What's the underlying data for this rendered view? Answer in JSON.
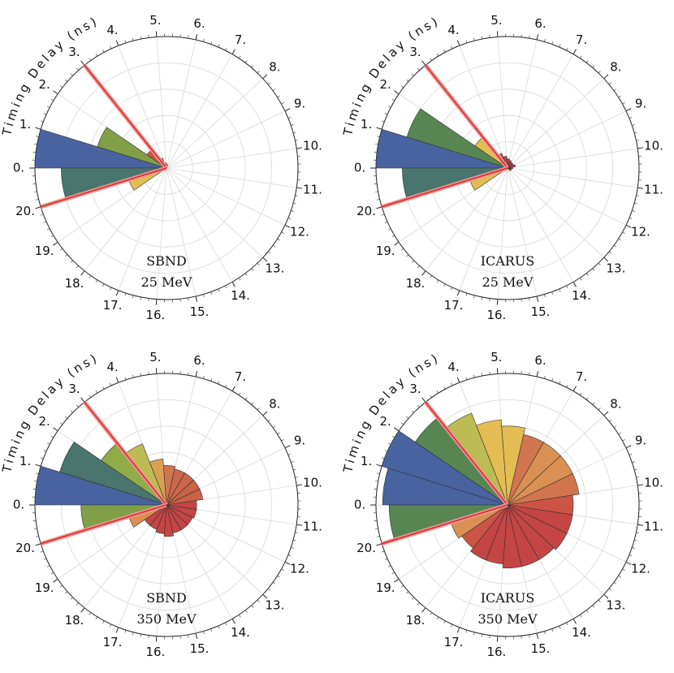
{
  "figure": {
    "curved_axis_label": "Timing Delay (ns)"
  },
  "chart_data": [
    {
      "type": "polar-bar",
      "label_lines": [
        "SBND",
        "25 MeV"
      ],
      "angular_ticks": [
        "0.",
        "1.",
        "2.",
        "3.",
        "4.",
        "5.",
        "6.",
        "7.",
        "8.",
        "9.",
        "10.",
        "11.",
        "12.",
        "13.",
        "14.",
        "15.",
        "16.",
        "17.",
        "18.",
        "19.",
        "20."
      ],
      "angular_range_ns": [
        0,
        21
      ],
      "radial_max": 1.0,
      "radial_grid": [
        0.2,
        0.4,
        0.6,
        0.8,
        1.0
      ],
      "red_lines_ns": [
        3.0,
        20.0
      ],
      "bins": [
        {
          "t": 0.5,
          "r": 1.0,
          "color": "#3f5b9c"
        },
        {
          "t": 1.5,
          "r": 0.55,
          "color": "#7a9a3c"
        },
        {
          "t": 2.5,
          "r": 0.18,
          "color": "#c94b3b"
        },
        {
          "t": 3.5,
          "r": 0.08,
          "color": "#c23b3b"
        },
        {
          "t": 4.5,
          "r": 0.04,
          "color": "#c23b3b"
        },
        {
          "t": 5.5,
          "r": 0.03,
          "color": "#c23b3b"
        },
        {
          "t": 6.5,
          "r": 0.02,
          "color": "#c23b3b"
        },
        {
          "t": 19.5,
          "r": 0.3,
          "color": "#e1b84a"
        },
        {
          "t": 20.5,
          "r": 0.8,
          "color": "#3f6e66"
        }
      ]
    },
    {
      "type": "polar-bar",
      "label_lines": [
        "ICARUS",
        "25 MeV"
      ],
      "angular_ticks": [
        "0.",
        "1.",
        "2.",
        "3.",
        "4.",
        "5.",
        "6.",
        "7.",
        "8.",
        "9.",
        "10.",
        "11.",
        "12.",
        "13.",
        "14.",
        "15.",
        "16.",
        "17.",
        "18.",
        "19.",
        "20."
      ],
      "angular_range_ns": [
        0,
        21
      ],
      "radial_max": 1.0,
      "radial_grid": [
        0.2,
        0.4,
        0.6,
        0.8,
        1.0
      ],
      "red_lines_ns": [
        3.0,
        20.0
      ],
      "bins": [
        {
          "t": 0.5,
          "r": 1.0,
          "color": "#3f5b9c"
        },
        {
          "t": 1.5,
          "r": 0.8,
          "color": "#4f7f4a"
        },
        {
          "t": 2.5,
          "r": 0.3,
          "color": "#e1b84a"
        },
        {
          "t": 3.5,
          "r": 0.12,
          "color": "#c94b3b"
        },
        {
          "t": 4.5,
          "r": 0.09,
          "color": "#c23b3b"
        },
        {
          "t": 5.5,
          "r": 0.07,
          "color": "#c23b3b"
        },
        {
          "t": 6.5,
          "r": 0.06,
          "color": "#c23b3b"
        },
        {
          "t": 7.5,
          "r": 0.05,
          "color": "#c23b3b"
        },
        {
          "t": 8.5,
          "r": 0.05,
          "color": "#c23b3b"
        },
        {
          "t": 9.5,
          "r": 0.06,
          "color": "#c23b3b"
        },
        {
          "t": 10.5,
          "r": 0.04,
          "color": "#c23b3b"
        },
        {
          "t": 11.5,
          "r": 0.03,
          "color": "#c23b3b"
        },
        {
          "t": 12.5,
          "r": 0.03,
          "color": "#c23b3b"
        },
        {
          "t": 19.5,
          "r": 0.3,
          "color": "#e1b84a"
        },
        {
          "t": 20.5,
          "r": 0.8,
          "color": "#3f6e66"
        }
      ]
    },
    {
      "type": "polar-bar",
      "label_lines": [
        "SBND",
        "350 MeV"
      ],
      "angular_ticks": [
        "0.",
        "1.",
        "2.",
        "3.",
        "4.",
        "5.",
        "6.",
        "7.",
        "8.",
        "9.",
        "10.",
        "11.",
        "12.",
        "13.",
        "14.",
        "15.",
        "16.",
        "17.",
        "18.",
        "19.",
        "20."
      ],
      "angular_range_ns": [
        0,
        21
      ],
      "radial_max": 1.0,
      "radial_grid": [
        0.2,
        0.4,
        0.6,
        0.8,
        1.0
      ],
      "red_lines_ns": [
        3.0,
        20.0
      ],
      "bins": [
        {
          "t": 0.5,
          "r": 1.0,
          "color": "#3f5b9c"
        },
        {
          "t": 1.5,
          "r": 0.85,
          "color": "#3f6e66"
        },
        {
          "t": 2.5,
          "r": 0.6,
          "color": "#8aa83f"
        },
        {
          "t": 3.5,
          "r": 0.5,
          "color": "#b9b74a"
        },
        {
          "t": 4.5,
          "r": 0.35,
          "color": "#d99a4a"
        },
        {
          "t": 5.5,
          "r": 0.3,
          "color": "#cf6e45"
        },
        {
          "t": 6.5,
          "r": 0.28,
          "color": "#c9603f"
        },
        {
          "t": 7.5,
          "r": 0.28,
          "color": "#c9603f"
        },
        {
          "t": 8.5,
          "r": 0.28,
          "color": "#c65a3d"
        },
        {
          "t": 9.5,
          "r": 0.28,
          "color": "#c65a3d"
        },
        {
          "t": 10.5,
          "r": 0.23,
          "color": "#c23b3b"
        },
        {
          "t": 11.5,
          "r": 0.23,
          "color": "#c23b3b"
        },
        {
          "t": 12.5,
          "r": 0.22,
          "color": "#c23b3b"
        },
        {
          "t": 13.5,
          "r": 0.22,
          "color": "#c23b3b"
        },
        {
          "t": 14.5,
          "r": 0.22,
          "color": "#c23b3b"
        },
        {
          "t": 15.5,
          "r": 0.24,
          "color": "#c23b3b"
        },
        {
          "t": 16.5,
          "r": 0.22,
          "color": "#c23b3b"
        },
        {
          "t": 17.5,
          "r": 0.2,
          "color": "#c23b3b"
        },
        {
          "t": 18.5,
          "r": 0.2,
          "color": "#c23b3b"
        },
        {
          "t": 19.5,
          "r": 0.3,
          "color": "#d98a4a"
        },
        {
          "t": 20.5,
          "r": 0.65,
          "color": "#7a9a3c"
        }
      ]
    },
    {
      "type": "polar-bar",
      "label_lines": [
        "ICARUS",
        "350 MeV"
      ],
      "angular_ticks": [
        "0.",
        "1.",
        "2.",
        "3.",
        "4.",
        "5.",
        "6.",
        "7.",
        "8.",
        "9.",
        "10.",
        "11.",
        "12.",
        "13.",
        "14.",
        "15.",
        "16.",
        "17.",
        "18.",
        "19.",
        "20."
      ],
      "angular_range_ns": [
        0,
        21
      ],
      "radial_max": 1.0,
      "radial_grid": [
        0.2,
        0.4,
        0.6,
        0.8,
        1.0
      ],
      "red_lines_ns": [
        3.0,
        20.0
      ],
      "bins": [
        {
          "t": 0.5,
          "r": 0.95,
          "color": "#3f5b9c"
        },
        {
          "t": 1.5,
          "r": 1.0,
          "color": "#3f5b9c"
        },
        {
          "t": 2.5,
          "r": 0.85,
          "color": "#4f7f4a"
        },
        {
          "t": 3.5,
          "r": 0.75,
          "color": "#b9b74a"
        },
        {
          "t": 4.5,
          "r": 0.65,
          "color": "#e1b84a"
        },
        {
          "t": 5.5,
          "r": 0.6,
          "color": "#e1b84a"
        },
        {
          "t": 6.5,
          "r": 0.55,
          "color": "#cf6e45"
        },
        {
          "t": 7.5,
          "r": 0.55,
          "color": "#d98a4a"
        },
        {
          "t": 8.5,
          "r": 0.55,
          "color": "#d98a4a"
        },
        {
          "t": 9.5,
          "r": 0.55,
          "color": "#cf6e45"
        },
        {
          "t": 10.5,
          "r": 0.5,
          "color": "#c94b3b"
        },
        {
          "t": 11.5,
          "r": 0.5,
          "color": "#c23b3b"
        },
        {
          "t": 12.5,
          "r": 0.5,
          "color": "#c23b3b"
        },
        {
          "t": 13.5,
          "r": 0.48,
          "color": "#c23b3b"
        },
        {
          "t": 14.5,
          "r": 0.48,
          "color": "#c23b3b"
        },
        {
          "t": 15.5,
          "r": 0.48,
          "color": "#c23b3b"
        },
        {
          "t": 16.5,
          "r": 0.45,
          "color": "#c23b3b"
        },
        {
          "t": 17.5,
          "r": 0.45,
          "color": "#c23b3b"
        },
        {
          "t": 18.5,
          "r": 0.42,
          "color": "#c94b3b"
        },
        {
          "t": 19.5,
          "r": 0.45,
          "color": "#d98a4a"
        },
        {
          "t": 20.5,
          "r": 0.9,
          "color": "#4f7f4a"
        }
      ]
    }
  ]
}
